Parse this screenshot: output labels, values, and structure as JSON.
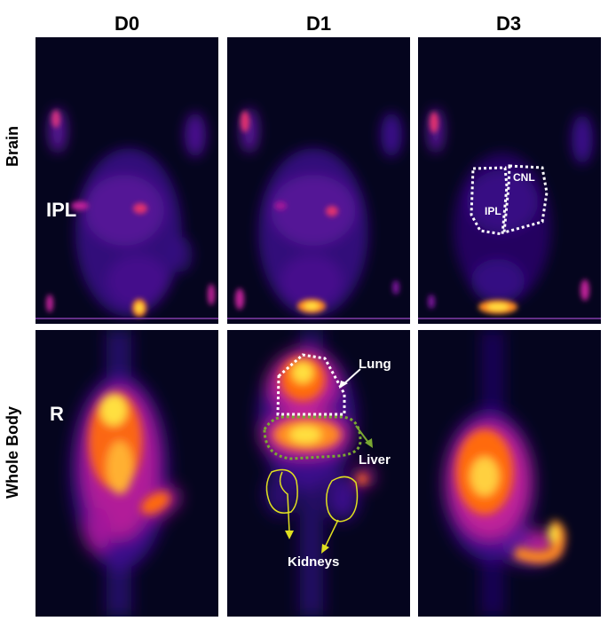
{
  "columns": [
    "D0",
    "D1",
    "D3"
  ],
  "rows": [
    "Brain",
    "Whole Body"
  ],
  "annotations": {
    "ipl_big": "IPL",
    "r": "R",
    "cnl": "CNL",
    "ipl_small": "IPL",
    "lung": "Lung",
    "liver": "Liver",
    "kidneys": "Kidneys"
  },
  "colors": {
    "background": "#05051e",
    "heat_low": "#3a0a8a",
    "heat_mid": "#c0209a",
    "heat_high": "#ff6a10",
    "heat_peak": "#ffe040",
    "lung_outline": "#ffffff",
    "liver_outline": "#7aa832",
    "kidney_outline": "#e0e020"
  },
  "colormap": "fire"
}
